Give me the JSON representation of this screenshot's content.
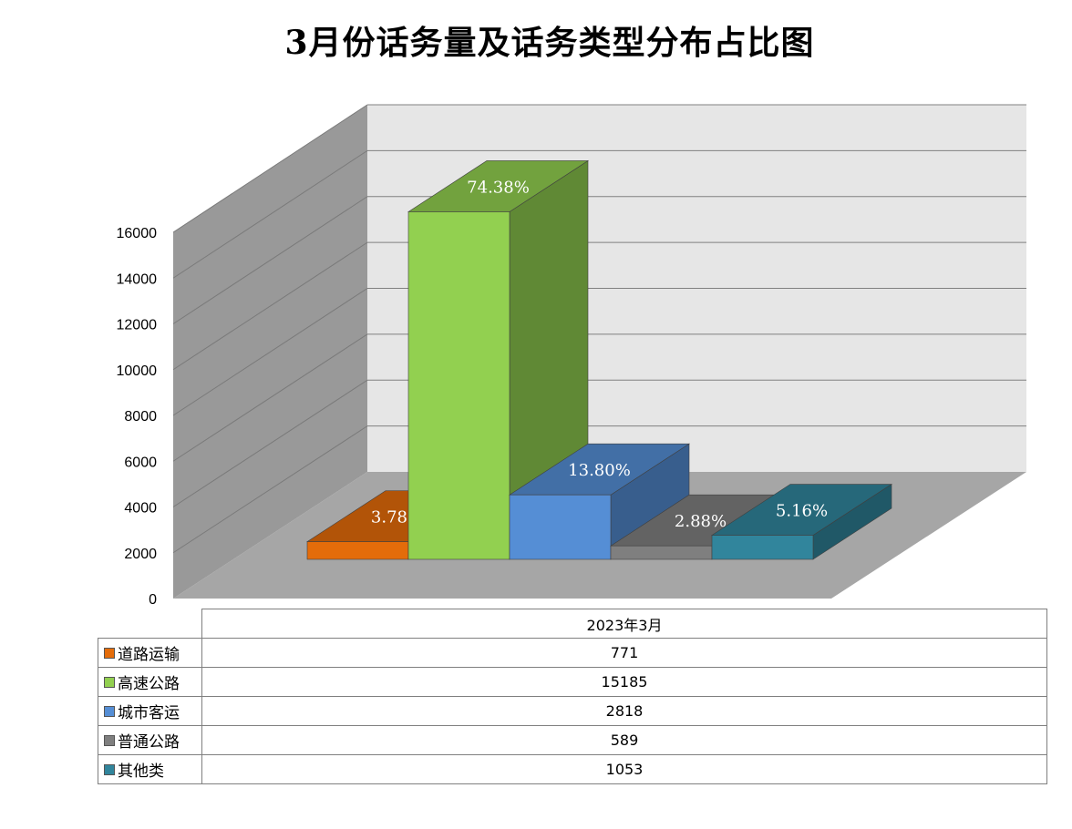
{
  "title": "3月份话务量及话务类型分布占比图",
  "chart_data": {
    "type": "bar",
    "style": "3d-clustered-column-with-data-table",
    "title": "3月份话务量及话务类型分布占比图",
    "categories": [
      "2023年3月"
    ],
    "ylim": [
      0,
      16000
    ],
    "yticks": [
      "0",
      "2000",
      "4000",
      "6000",
      "8000",
      "10000",
      "12000",
      "14000",
      "16000"
    ],
    "grid": true,
    "series": [
      {
        "name": "道路运输",
        "values": [
          771
        ],
        "label": "3.78%",
        "color": "#E46C0A"
      },
      {
        "name": "高速公路",
        "values": [
          15185
        ],
        "label": "74.38%",
        "color": "#92D050"
      },
      {
        "name": "城市客运",
        "values": [
          2818
        ],
        "label": "13.80%",
        "color": "#558ED5"
      },
      {
        "name": "普通公路",
        "values": [
          589
        ],
        "label": "2.88%",
        "color": "#7F7F7F"
      },
      {
        "name": "其他类",
        "values": [
          1053
        ],
        "label": "5.16%",
        "color": "#31859C"
      }
    ],
    "table": {
      "header": "2023年3月",
      "rows": [
        {
          "name": "道路运输",
          "value": "771"
        },
        {
          "name": "高速公路",
          "value": "15185"
        },
        {
          "name": "城市客运",
          "value": "2818"
        },
        {
          "name": "普通公路",
          "value": "589"
        },
        {
          "name": "其他类",
          "value": "1053"
        }
      ]
    }
  }
}
